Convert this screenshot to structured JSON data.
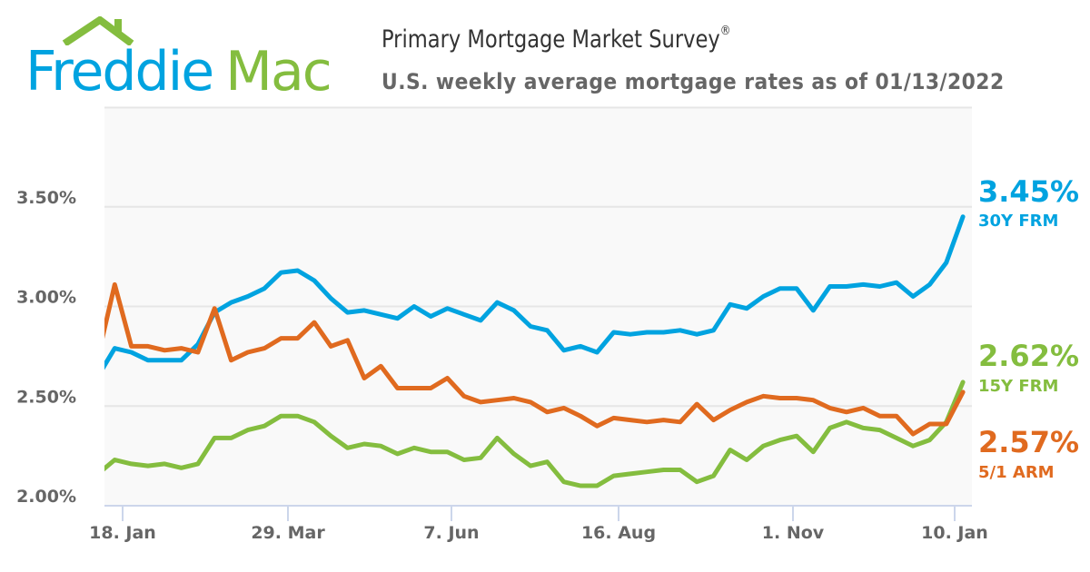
{
  "logo": {
    "part1": "Freddie",
    "part2": "Mac",
    "colors": {
      "blue": "#00a3e0",
      "green": "#84bd3f"
    }
  },
  "header": {
    "title": "Primary Mortgage Market Survey",
    "title_mark": "®",
    "subtitle": "U.S. weekly average mortgage rates as of 01/13/2022"
  },
  "chart_data": {
    "type": "line",
    "title": "Primary Mortgage Market Survey®",
    "subtitle": "U.S. weekly average mortgage rates as of 01/13/2022",
    "xlabel": "",
    "ylabel": "",
    "x_ticks": [
      "18. Jan",
      "29. Mar",
      "7. Jun",
      "16. Aug",
      "1. Nov",
      "10. Jan"
    ],
    "y_ticks": [
      "2.00%",
      "2.50%",
      "3.00%",
      "3.50%"
    ],
    "ylim": [
      2.0,
      4.0
    ],
    "grid": true,
    "legend": "right (end labels)",
    "series": [
      {
        "name": "30Y FRM",
        "end_label": "3.45%",
        "color": "#00a3e0",
        "values": [
          2.65,
          2.79,
          2.77,
          2.73,
          2.73,
          2.73,
          2.81,
          2.97,
          3.02,
          3.05,
          3.09,
          3.17,
          3.18,
          3.13,
          3.04,
          2.97,
          2.98,
          2.96,
          2.94,
          3.0,
          2.95,
          2.99,
          2.96,
          2.93,
          3.02,
          2.98,
          2.9,
          2.88,
          2.78,
          2.8,
          2.77,
          2.87,
          2.86,
          2.87,
          2.87,
          2.88,
          2.86,
          2.88,
          3.01,
          2.99,
          3.05,
          3.09,
          3.09,
          2.98,
          3.1,
          3.1,
          3.11,
          3.1,
          3.12,
          3.05,
          3.11,
          3.22,
          3.45
        ]
      },
      {
        "name": "15Y FRM",
        "end_label": "2.62%",
        "color": "#84bd3f",
        "values": [
          2.16,
          2.23,
          2.21,
          2.2,
          2.21,
          2.19,
          2.21,
          2.34,
          2.34,
          2.38,
          2.4,
          2.45,
          2.45,
          2.42,
          2.35,
          2.29,
          2.31,
          2.3,
          2.26,
          2.29,
          2.27,
          2.27,
          2.23,
          2.24,
          2.34,
          2.26,
          2.2,
          2.22,
          2.12,
          2.1,
          2.1,
          2.15,
          2.16,
          2.17,
          2.18,
          2.18,
          2.12,
          2.15,
          2.28,
          2.23,
          2.3,
          2.33,
          2.35,
          2.27,
          2.39,
          2.42,
          2.39,
          2.38,
          2.34,
          2.3,
          2.33,
          2.42,
          2.62
        ]
      },
      {
        "name": "5/1 ARM",
        "end_label": "2.57%",
        "color": "#e06a1f",
        "values": [
          2.75,
          3.11,
          2.8,
          2.8,
          2.78,
          2.79,
          2.77,
          2.99,
          2.73,
          2.77,
          2.79,
          2.84,
          2.84,
          2.92,
          2.8,
          2.83,
          2.64,
          2.7,
          2.59,
          2.59,
          2.59,
          2.64,
          2.55,
          2.52,
          2.53,
          2.54,
          2.52,
          2.47,
          2.49,
          2.45,
          2.4,
          2.44,
          2.43,
          2.42,
          2.43,
          2.42,
          2.51,
          2.43,
          2.48,
          2.52,
          2.55,
          2.54,
          2.54,
          2.53,
          2.49,
          2.47,
          2.49,
          2.45,
          2.45,
          2.36,
          2.41,
          2.41,
          2.57
        ]
      }
    ]
  }
}
